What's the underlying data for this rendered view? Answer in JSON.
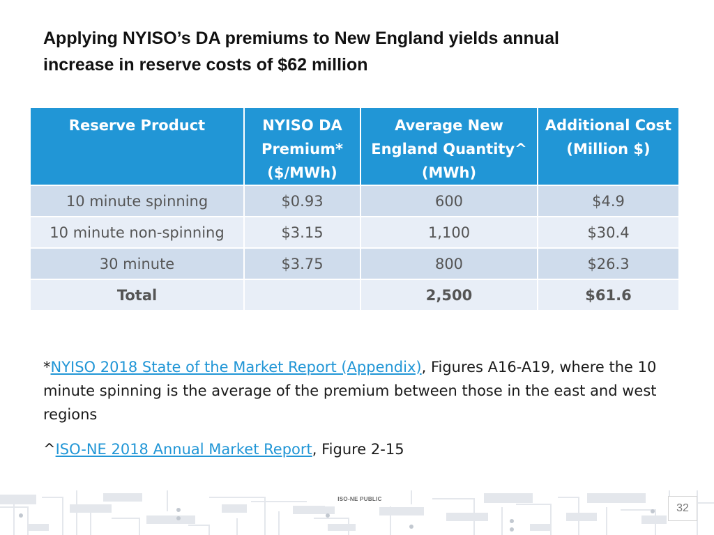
{
  "slide": {
    "title_line1": "Applying NYISO’s DA premiums to New England  yields annual",
    "title_line2": "increase in reserve costs of $62 million"
  },
  "table": {
    "headers": [
      "Reserve Product",
      "NYISO DA Premium* ($/MWh)",
      "Average New England Quantity^ (MWh)",
      "Additional Cost (Million $)"
    ],
    "rows": [
      [
        "10 minute spinning",
        "$0.93",
        "600",
        "$4.9"
      ],
      [
        "10 minute non-spinning",
        "$3.15",
        "1,100",
        "$30.4"
      ],
      [
        "30 minute",
        "$3.75",
        "800",
        "$26.3"
      ]
    ],
    "total": [
      "Total",
      "",
      "2,500",
      "$61.6"
    ]
  },
  "notes": {
    "note1_prefix": "*",
    "note1_link": "NYISO 2018 State of the Market Report (Appendix)",
    "note1_rest": ", Figures A16-A19, where the 10 minute spinning is the average of the premium between those in the east and west regions",
    "note2_prefix": "^",
    "note2_link": "ISO-NE 2018 Annual Market Report",
    "note2_rest": ", Figure 2-15"
  },
  "footer": {
    "tag": "ISO-NE PUBLIC",
    "page_number": "32"
  },
  "colors": {
    "header_blue": "#2196d6",
    "row_dark": "#cfdcec",
    "row_light": "#e8eef7",
    "link": "#2196d6"
  }
}
